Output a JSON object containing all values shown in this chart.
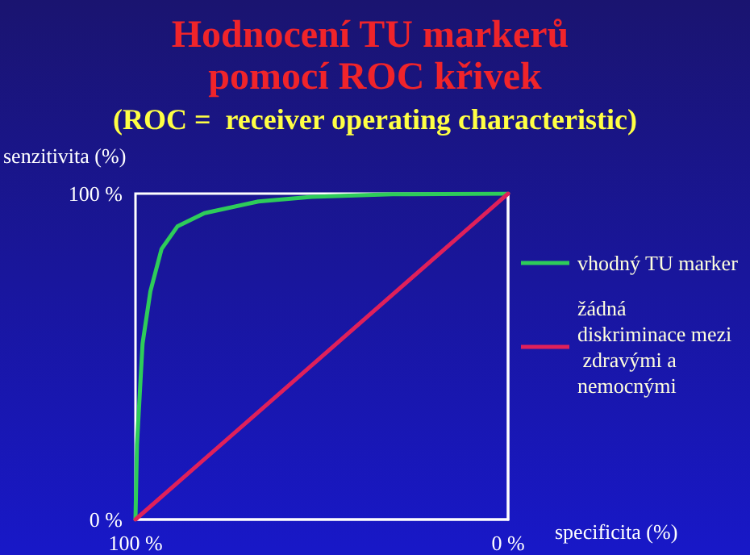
{
  "chart_data": {
    "type": "line",
    "title": "Hodnocení TU markerů pomocí ROC křivek",
    "subtitle": "(ROC =  receiver operating characteristic)",
    "xlabel": "specificita (%)",
    "ylabel": "senzitivita (%)",
    "series": [
      {
        "name": "vhodný TU marker",
        "color": "#2ecc5a",
        "x": [
          100,
          99.6,
          98.1,
          96,
          93,
          88.7,
          81.5,
          67,
          52.7,
          31,
          0
        ],
        "values": [
          0,
          23,
          54,
          70,
          83,
          90,
          94,
          97.6,
          99,
          99.8,
          100
        ]
      },
      {
        "name": "žádná diskriminace mezi zdravými a nemocnými",
        "color": "#e0205a",
        "x": [
          100,
          0
        ],
        "values": [
          0,
          100
        ]
      }
    ],
    "xlim": [
      100,
      0
    ],
    "xticks": [
      {
        "value": 100,
        "label": "100 %"
      },
      {
        "value": 0,
        "label": "0 %"
      }
    ],
    "ylim": [
      0,
      100
    ],
    "yticks": [
      {
        "value": 0,
        "label": "0 %"
      },
      {
        "value": 100,
        "label": "100 %"
      }
    ],
    "grid": false,
    "legend": "right",
    "marker": "none",
    "line_style": "solid"
  }
}
